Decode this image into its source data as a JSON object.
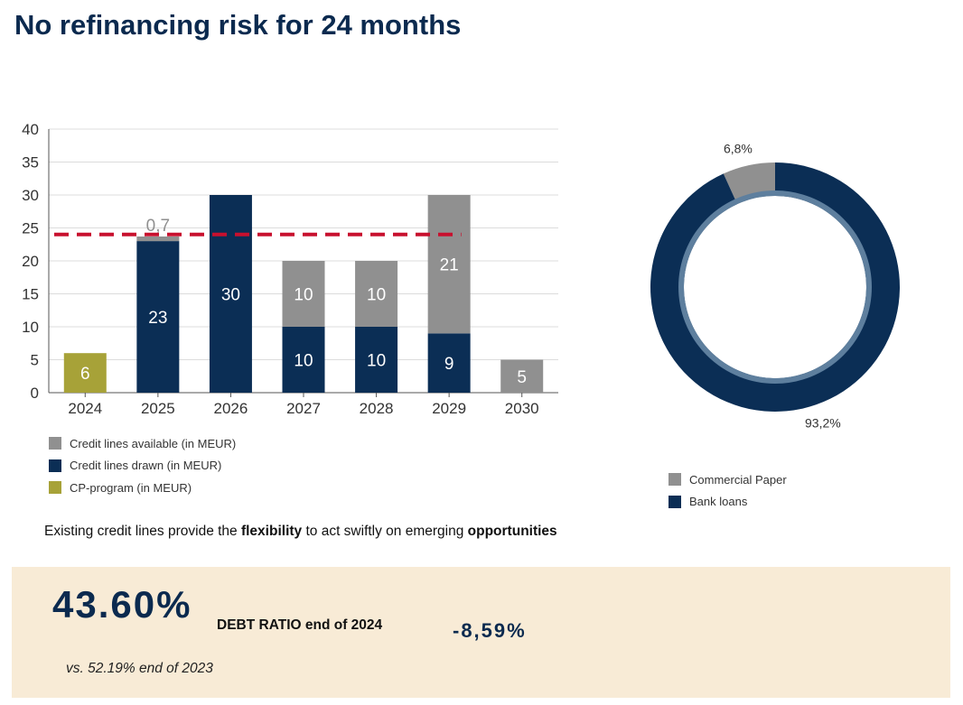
{
  "page": {
    "title": "No refinancing risk for 24 months",
    "statement": {
      "part1": "Existing credit lines provide the ",
      "bold1": "flexibility",
      "part2": " to act swiftly on emerging ",
      "bold2": "opportunities"
    },
    "kpi": {
      "value": "43.60%",
      "label": "DEBT RATIO end of 2024",
      "change": "-8,59%",
      "note": "vs. 52.19% end of 2023"
    }
  },
  "colors": {
    "navy": "#0b2e55",
    "gray": "#909090",
    "olive": "#a7a238",
    "red_dashed": "#c8102e",
    "donut_inner_ring": "#5e7f9e"
  },
  "chart_data": [
    {
      "type": "bar",
      "stacked": true,
      "categories": [
        "2024",
        "2025",
        "2026",
        "2027",
        "2028",
        "2029",
        "2030"
      ],
      "series": [
        {
          "name": "CP-program (in MEUR)",
          "color": "#a7a238",
          "values": [
            6,
            0,
            0,
            0,
            0,
            0,
            0
          ],
          "labels": [
            "6",
            "",
            "",
            "",
            "",
            "",
            ""
          ]
        },
        {
          "name": "Credit lines drawn (in MEUR)",
          "color": "#0b2e55",
          "values": [
            0,
            23,
            30,
            10,
            10,
            9,
            0
          ],
          "labels": [
            "",
            "23",
            "30",
            "10",
            "10",
            "9",
            ""
          ]
        },
        {
          "name": "Credit lines available (in MEUR)",
          "color": "#909090",
          "values": [
            0,
            0.7,
            0,
            10,
            10,
            21,
            5
          ],
          "labels": [
            "",
            "0,7",
            "",
            "10",
            "10",
            "21",
            "5"
          ]
        }
      ],
      "legend_order": [
        "Credit lines available (in MEUR)",
        "Credit lines drawn (in MEUR)",
        "CP-program (in MEUR)"
      ],
      "yticks": [
        "0",
        "5",
        "10",
        "15",
        "20",
        "25",
        "30",
        "35",
        "40"
      ],
      "ylim": [
        0,
        40
      ],
      "reference_line": {
        "value": 24,
        "style": "dashed",
        "color": "#c8102e"
      },
      "grid": true,
      "legend_position": "bottom-left"
    },
    {
      "type": "pie",
      "donut": true,
      "slices": [
        {
          "name": "Commercial Paper",
          "value": 6.8,
          "label": "6,8%",
          "color": "#909090"
        },
        {
          "name": "Bank loans",
          "value": 93.2,
          "label": "93,2%",
          "color": "#0b2e55"
        }
      ],
      "legend_position": "bottom"
    }
  ]
}
